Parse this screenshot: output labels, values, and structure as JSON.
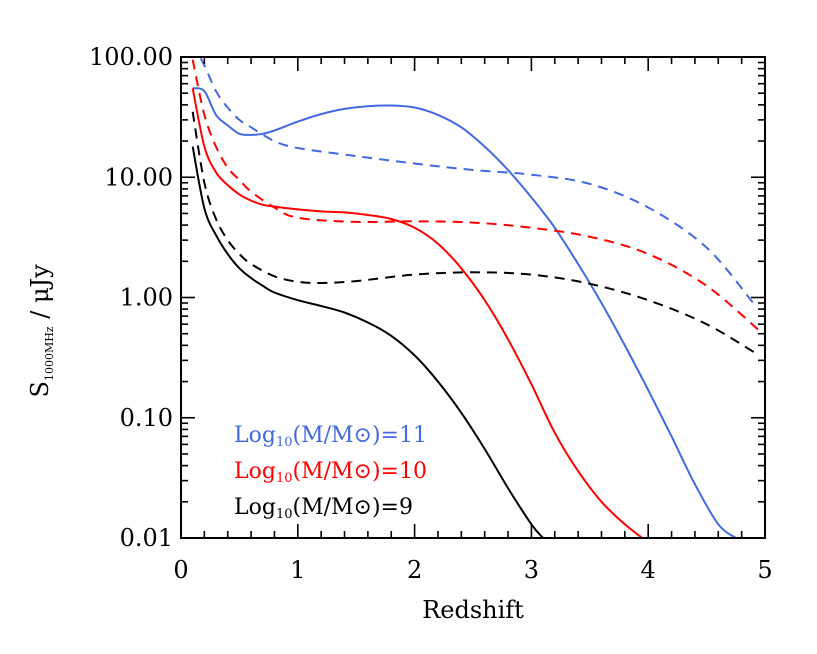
{
  "chart_data": {
    "type": "line",
    "xlabel": "Redshift",
    "ylabel_main": "S",
    "ylabel_sub": "1000MHz",
    "ylabel_unit": " / μJy",
    "xlim": [
      0,
      5
    ],
    "ylim": [
      0.01,
      100
    ],
    "yscale": "log",
    "xticks": [
      0,
      1,
      2,
      3,
      4,
      5
    ],
    "xtick_labels": [
      "0",
      "1",
      "2",
      "3",
      "4",
      "5"
    ],
    "yticks": [
      0.01,
      0.1,
      1,
      10,
      100
    ],
    "ytick_labels": [
      "0.01",
      "0.10",
      "1.00",
      "10.00",
      "100.00"
    ],
    "grid": false,
    "legend_position": "bottom-left",
    "series": [
      {
        "name": "Log10(M/M⊙)=11",
        "mass": "11",
        "color": "#4169E1",
        "solid": {
          "x": [
            0.1,
            0.2,
            0.3,
            0.4,
            0.5,
            0.6,
            0.7,
            0.8,
            1.0,
            1.2,
            1.4,
            1.6,
            1.8,
            2.0,
            2.2,
            2.4,
            2.6,
            2.8,
            3.0,
            3.2,
            3.4,
            3.6,
            3.8,
            4.0,
            4.2,
            4.4,
            4.6,
            4.75
          ],
          "y": [
            55,
            52,
            33,
            27,
            23,
            22.5,
            23,
            24.5,
            29,
            33.5,
            37,
            39,
            39.5,
            38,
            33,
            26,
            18,
            11.5,
            6.8,
            3.8,
            1.9,
            0.9,
            0.4,
            0.17,
            0.07,
            0.028,
            0.013,
            0.01
          ]
        },
        "dashed": {
          "x": [
            0.1,
            0.2,
            0.3,
            0.4,
            0.5,
            0.6,
            0.8,
            1.0,
            1.5,
            2.0,
            2.5,
            3.0,
            3.5,
            4.0,
            4.5,
            4.9
          ],
          "y": [
            130,
            85,
            52,
            38,
            30,
            26,
            20,
            17.5,
            15,
            13,
            11.5,
            10.5,
            8.8,
            5.6,
            2.6,
            0.9
          ]
        }
      },
      {
        "name": "Log10(M/M⊙)=10",
        "mass": "10",
        "color": "#FF0000",
        "solid": {
          "x": [
            0.1,
            0.2,
            0.3,
            0.4,
            0.5,
            0.6,
            0.7,
            0.8,
            1.0,
            1.2,
            1.4,
            1.6,
            1.8,
            2.0,
            2.2,
            2.4,
            2.6,
            2.8,
            3.0,
            3.2,
            3.4,
            3.6,
            3.8,
            3.95
          ],
          "y": [
            55,
            18,
            11,
            8.6,
            7.2,
            6.4,
            5.9,
            5.7,
            5.4,
            5.2,
            5.1,
            4.85,
            4.5,
            3.8,
            2.8,
            1.75,
            0.95,
            0.45,
            0.19,
            0.075,
            0.036,
            0.02,
            0.013,
            0.01
          ]
        },
        "dashed": {
          "x": [
            0.1,
            0.2,
            0.3,
            0.4,
            0.5,
            0.6,
            0.8,
            1.0,
            1.5,
            2.0,
            2.5,
            3.0,
            3.5,
            4.0,
            4.5,
            4.98
          ],
          "y": [
            95,
            33,
            18,
            12,
            9.5,
            7.6,
            5.6,
            4.6,
            4.25,
            4.3,
            4.2,
            3.8,
            3.2,
            2.3,
            1.25,
            0.5
          ]
        }
      },
      {
        "name": "Log10(M/M⊙)=9",
        "mass": "9",
        "color": "#000000",
        "solid": {
          "x": [
            0.1,
            0.2,
            0.3,
            0.4,
            0.5,
            0.6,
            0.7,
            0.8,
            1.0,
            1.2,
            1.4,
            1.6,
            1.8,
            2.0,
            2.2,
            2.4,
            2.6,
            2.8,
            3.0,
            3.1
          ],
          "y": [
            18,
            5.5,
            3.3,
            2.3,
            1.75,
            1.45,
            1.25,
            1.1,
            0.95,
            0.85,
            0.75,
            0.62,
            0.48,
            0.33,
            0.2,
            0.11,
            0.055,
            0.026,
            0.013,
            0.01
          ]
        },
        "dashed": {
          "x": [
            0.1,
            0.2,
            0.3,
            0.4,
            0.5,
            0.6,
            0.8,
            1.0,
            1.2,
            1.5,
            2.0,
            2.5,
            3.0,
            3.5,
            4.0,
            4.5,
            4.95
          ],
          "y": [
            35,
            9,
            4.5,
            3,
            2.3,
            1.9,
            1.5,
            1.35,
            1.32,
            1.37,
            1.55,
            1.62,
            1.55,
            1.3,
            0.95,
            0.6,
            0.33
          ]
        }
      }
    ]
  }
}
